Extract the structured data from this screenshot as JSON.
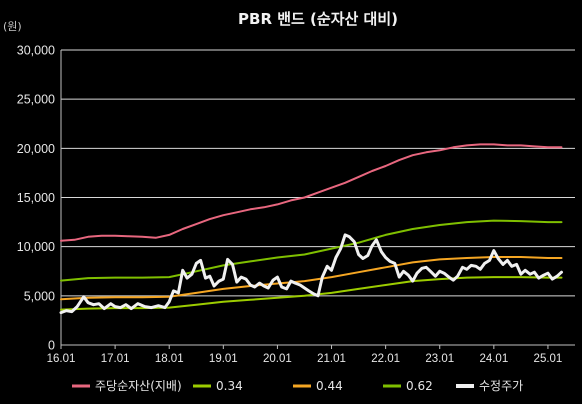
{
  "chart_data": {
    "type": "line",
    "title": "PBR 밴드 (순자산 대비)",
    "unit_label": "(원)",
    "ylim": [
      0,
      30000
    ],
    "y_ticks": [
      "0",
      "5,000",
      "10,000",
      "15,000",
      "20,000",
      "25,000",
      "30,000"
    ],
    "xlim": [
      2016.0,
      2025.5
    ],
    "x_ticks": [
      {
        "label": "16.01",
        "x": 2016.0
      },
      {
        "label": "17.01",
        "x": 2017.0
      },
      {
        "label": "18.01",
        "x": 2018.0
      },
      {
        "label": "19.01",
        "x": 2019.0
      },
      {
        "label": "20.01",
        "x": 2020.0
      },
      {
        "label": "21.01",
        "x": 2021.0
      },
      {
        "label": "22.01",
        "x": 2022.0
      },
      {
        "label": "23.01",
        "x": 2023.0
      },
      {
        "label": "24.01",
        "x": 2024.0
      },
      {
        "label": "25.01",
        "x": 2025.0
      }
    ],
    "grid": "horizontal",
    "legend_position": "bottom",
    "series": [
      {
        "name": "주당순자산(지배)",
        "color": "#e8677f",
        "width": 2,
        "points": [
          [
            2016.0,
            10600
          ],
          [
            2016.25,
            10700
          ],
          [
            2016.5,
            11000
          ],
          [
            2016.75,
            11100
          ],
          [
            2017.0,
            11100
          ],
          [
            2017.25,
            11050
          ],
          [
            2017.5,
            11000
          ],
          [
            2017.75,
            10900
          ],
          [
            2018.0,
            11200
          ],
          [
            2018.25,
            11800
          ],
          [
            2018.5,
            12300
          ],
          [
            2018.75,
            12800
          ],
          [
            2019.0,
            13200
          ],
          [
            2019.25,
            13500
          ],
          [
            2019.5,
            13800
          ],
          [
            2019.75,
            14000
          ],
          [
            2020.0,
            14300
          ],
          [
            2020.25,
            14700
          ],
          [
            2020.5,
            15000
          ],
          [
            2020.75,
            15500
          ],
          [
            2021.0,
            16000
          ],
          [
            2021.25,
            16500
          ],
          [
            2021.5,
            17100
          ],
          [
            2021.75,
            17700
          ],
          [
            2022.0,
            18200
          ],
          [
            2022.25,
            18800
          ],
          [
            2022.5,
            19300
          ],
          [
            2022.75,
            19600
          ],
          [
            2023.0,
            19800
          ],
          [
            2023.25,
            20100
          ],
          [
            2023.5,
            20300
          ],
          [
            2023.75,
            20400
          ],
          [
            2024.0,
            20400
          ],
          [
            2024.25,
            20300
          ],
          [
            2024.5,
            20300
          ],
          [
            2024.75,
            20200
          ],
          [
            2025.0,
            20100
          ],
          [
            2025.25,
            20100
          ]
        ]
      },
      {
        "name": "0.34",
        "color": "#9ccc00",
        "width": 2,
        "points": [
          [
            2016.0,
            3600
          ],
          [
            2016.5,
            3700
          ],
          [
            2017.0,
            3750
          ],
          [
            2017.5,
            3750
          ],
          [
            2018.0,
            3800
          ],
          [
            2018.5,
            4100
          ],
          [
            2019.0,
            4400
          ],
          [
            2019.5,
            4600
          ],
          [
            2020.0,
            4800
          ],
          [
            2020.5,
            5000
          ],
          [
            2021.0,
            5300
          ],
          [
            2021.5,
            5700
          ],
          [
            2022.0,
            6100
          ],
          [
            2022.5,
            6500
          ],
          [
            2023.0,
            6700
          ],
          [
            2023.5,
            6850
          ],
          [
            2024.0,
            6900
          ],
          [
            2024.5,
            6900
          ],
          [
            2025.0,
            6850
          ],
          [
            2025.25,
            6850
          ]
        ]
      },
      {
        "name": "0.44",
        "color": "#f5a623",
        "width": 2,
        "points": [
          [
            2016.0,
            4650
          ],
          [
            2016.5,
            4800
          ],
          [
            2017.0,
            4850
          ],
          [
            2017.5,
            4850
          ],
          [
            2018.0,
            4900
          ],
          [
            2018.5,
            5300
          ],
          [
            2019.0,
            5700
          ],
          [
            2019.5,
            6000
          ],
          [
            2020.0,
            6250
          ],
          [
            2020.5,
            6500
          ],
          [
            2021.0,
            6900
          ],
          [
            2021.5,
            7400
          ],
          [
            2022.0,
            7900
          ],
          [
            2022.5,
            8400
          ],
          [
            2023.0,
            8700
          ],
          [
            2023.5,
            8850
          ],
          [
            2024.0,
            8950
          ],
          [
            2024.5,
            8950
          ],
          [
            2025.0,
            8850
          ],
          [
            2025.25,
            8850
          ]
        ]
      },
      {
        "name": "0.62",
        "color": "#7fbf00",
        "width": 2,
        "points": [
          [
            2016.0,
            6550
          ],
          [
            2016.5,
            6800
          ],
          [
            2017.0,
            6850
          ],
          [
            2017.5,
            6850
          ],
          [
            2018.0,
            6900
          ],
          [
            2018.5,
            7500
          ],
          [
            2019.0,
            8100
          ],
          [
            2019.5,
            8500
          ],
          [
            2020.0,
            8900
          ],
          [
            2020.5,
            9200
          ],
          [
            2021.0,
            9800
          ],
          [
            2021.5,
            10400
          ],
          [
            2022.0,
            11200
          ],
          [
            2022.5,
            11800
          ],
          [
            2023.0,
            12200
          ],
          [
            2023.5,
            12500
          ],
          [
            2024.0,
            12650
          ],
          [
            2024.5,
            12600
          ],
          [
            2025.0,
            12500
          ],
          [
            2025.25,
            12500
          ]
        ]
      },
      {
        "name": "수정주가",
        "color": "#f0f0f0",
        "width": 3,
        "points": [
          [
            2016.0,
            3300
          ],
          [
            2016.1,
            3500
          ],
          [
            2016.2,
            3400
          ],
          [
            2016.3,
            3900
          ],
          [
            2016.42,
            4900
          ],
          [
            2016.5,
            4300
          ],
          [
            2016.6,
            4100
          ],
          [
            2016.7,
            4200
          ],
          [
            2016.8,
            3700
          ],
          [
            2016.92,
            4200
          ],
          [
            2017.0,
            3900
          ],
          [
            2017.1,
            3800
          ],
          [
            2017.2,
            4100
          ],
          [
            2017.3,
            3700
          ],
          [
            2017.42,
            4200
          ],
          [
            2017.55,
            3900
          ],
          [
            2017.67,
            3800
          ],
          [
            2017.8,
            4000
          ],
          [
            2017.92,
            3800
          ],
          [
            2018.0,
            4400
          ],
          [
            2018.08,
            5500
          ],
          [
            2018.17,
            5300
          ],
          [
            2018.25,
            7600
          ],
          [
            2018.33,
            6800
          ],
          [
            2018.42,
            7200
          ],
          [
            2018.5,
            8300
          ],
          [
            2018.58,
            8600
          ],
          [
            2018.67,
            6800
          ],
          [
            2018.75,
            7000
          ],
          [
            2018.83,
            6000
          ],
          [
            2018.92,
            6500
          ],
          [
            2019.0,
            6700
          ],
          [
            2019.08,
            8700
          ],
          [
            2019.17,
            8200
          ],
          [
            2019.25,
            6400
          ],
          [
            2019.33,
            6900
          ],
          [
            2019.42,
            6700
          ],
          [
            2019.5,
            6100
          ],
          [
            2019.58,
            5900
          ],
          [
            2019.67,
            6300
          ],
          [
            2019.75,
            6000
          ],
          [
            2019.83,
            5800
          ],
          [
            2019.92,
            6600
          ],
          [
            2020.0,
            6900
          ],
          [
            2020.08,
            5900
          ],
          [
            2020.17,
            5700
          ],
          [
            2020.25,
            6500
          ],
          [
            2020.33,
            6300
          ],
          [
            2020.42,
            6100
          ],
          [
            2020.5,
            5800
          ],
          [
            2020.58,
            5500
          ],
          [
            2020.67,
            5200
          ],
          [
            2020.75,
            5000
          ],
          [
            2020.83,
            6900
          ],
          [
            2020.92,
            8000
          ],
          [
            2021.0,
            7600
          ],
          [
            2021.08,
            8900
          ],
          [
            2021.17,
            9800
          ],
          [
            2021.25,
            11200
          ],
          [
            2021.33,
            11000
          ],
          [
            2021.42,
            10500
          ],
          [
            2021.5,
            9200
          ],
          [
            2021.58,
            8800
          ],
          [
            2021.67,
            9100
          ],
          [
            2021.75,
            10100
          ],
          [
            2021.83,
            10700
          ],
          [
            2021.92,
            9500
          ],
          [
            2022.0,
            8900
          ],
          [
            2022.08,
            8500
          ],
          [
            2022.17,
            8300
          ],
          [
            2022.25,
            6900
          ],
          [
            2022.33,
            7500
          ],
          [
            2022.42,
            7100
          ],
          [
            2022.5,
            6500
          ],
          [
            2022.58,
            7300
          ],
          [
            2022.67,
            7800
          ],
          [
            2022.75,
            7900
          ],
          [
            2022.83,
            7500
          ],
          [
            2022.92,
            7000
          ],
          [
            2023.0,
            7500
          ],
          [
            2023.08,
            7300
          ],
          [
            2023.17,
            6900
          ],
          [
            2023.25,
            6600
          ],
          [
            2023.33,
            7000
          ],
          [
            2023.42,
            7900
          ],
          [
            2023.5,
            7700
          ],
          [
            2023.58,
            8100
          ],
          [
            2023.67,
            8000
          ],
          [
            2023.75,
            7700
          ],
          [
            2023.83,
            8300
          ],
          [
            2023.92,
            8600
          ],
          [
            2024.0,
            9600
          ],
          [
            2024.08,
            8800
          ],
          [
            2024.17,
            8200
          ],
          [
            2024.25,
            8600
          ],
          [
            2024.33,
            8000
          ],
          [
            2024.42,
            8200
          ],
          [
            2024.5,
            7200
          ],
          [
            2024.58,
            7600
          ],
          [
            2024.67,
            7200
          ],
          [
            2024.75,
            7400
          ],
          [
            2024.83,
            6800
          ],
          [
            2024.92,
            7100
          ],
          [
            2025.0,
            7300
          ],
          [
            2025.08,
            6700
          ],
          [
            2025.17,
            7000
          ],
          [
            2025.25,
            7400
          ]
        ]
      }
    ]
  }
}
